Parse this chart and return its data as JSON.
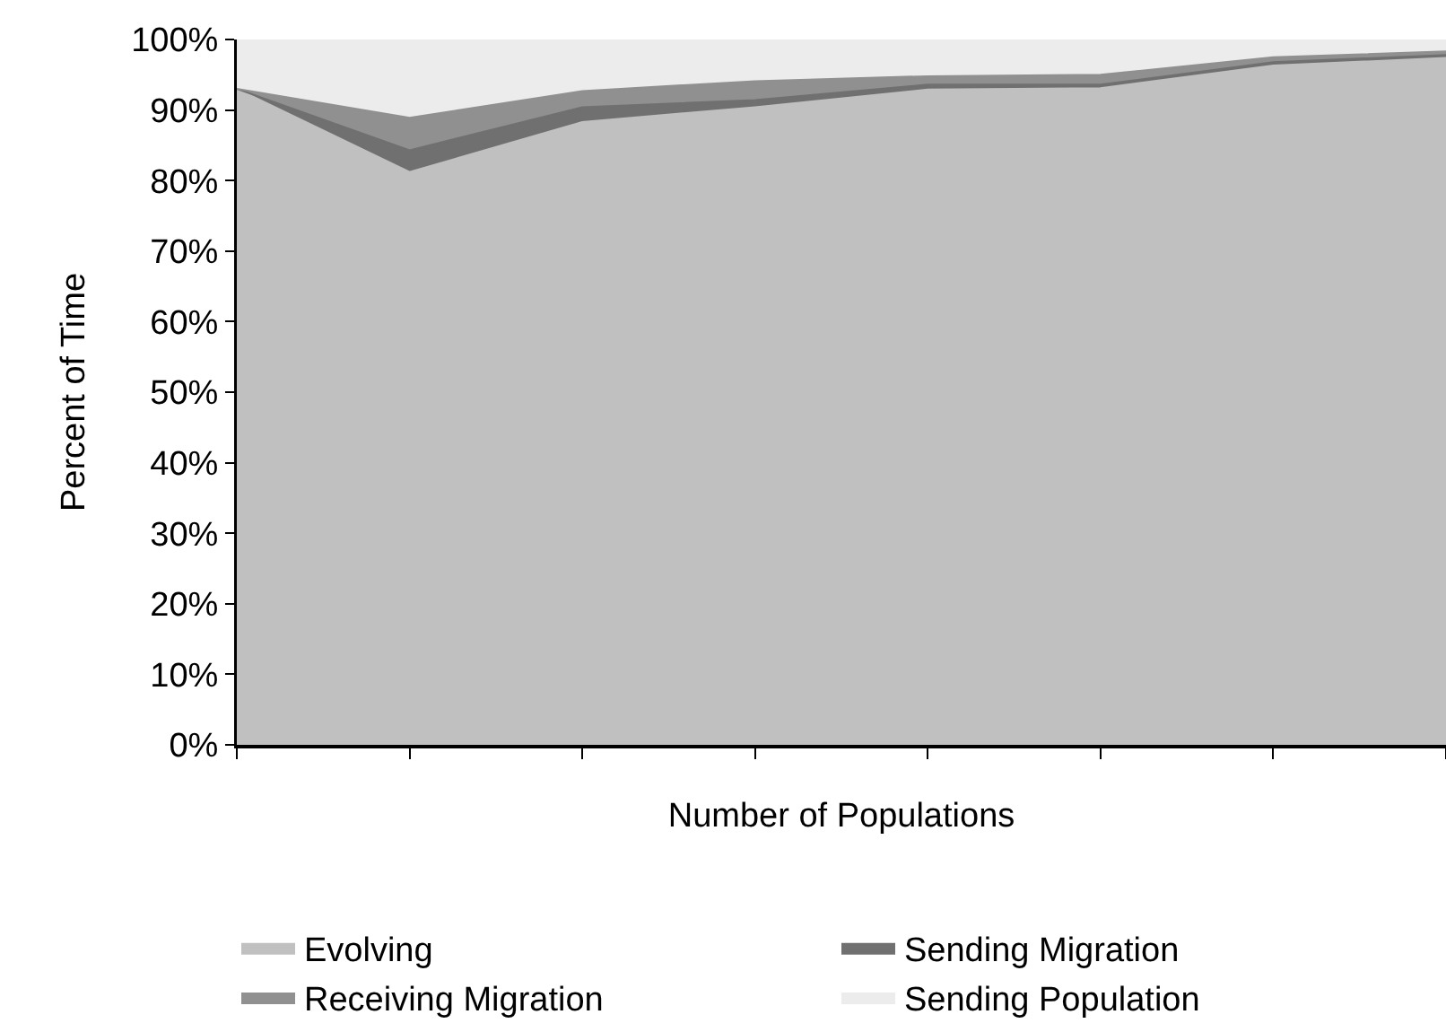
{
  "chart_data": {
    "type": "area",
    "stacked": true,
    "xlabel": "Number of Populations",
    "ylabel": "Percent of Time",
    "categories": [
      null,
      null,
      null,
      null,
      null,
      null,
      null,
      null
    ],
    "series": [
      {
        "name": "Evolving",
        "color": "#c0c0c0",
        "values": [
          93,
          81.2,
          88.3,
          90.4,
          92.9,
          93.1,
          96.3,
          97.4
        ]
      },
      {
        "name": "Sending Migration",
        "color": "#707070",
        "values": [
          0,
          3.1,
          2.1,
          1.0,
          0.7,
          0.5,
          0.5,
          0.4
        ]
      },
      {
        "name": "Receiving Migration",
        "color": "#909090",
        "values": [
          0,
          4.6,
          2.3,
          2.7,
          1.2,
          1.4,
          0.7,
          0.5
        ]
      },
      {
        "name": "Sending Population",
        "color": "#ececec",
        "values": [
          7,
          11.1,
          7.3,
          5.9,
          5.2,
          5.0,
          2.5,
          1.7
        ]
      }
    ],
    "ylim": [
      0,
      100
    ],
    "yticks": [
      {
        "value": 0,
        "label": "0%"
      },
      {
        "value": 10,
        "label": "10%"
      },
      {
        "value": 20,
        "label": "20%"
      },
      {
        "value": 30,
        "label": "30%"
      },
      {
        "value": 40,
        "label": "40%"
      },
      {
        "value": 50,
        "label": "50%"
      },
      {
        "value": 60,
        "label": "60%"
      },
      {
        "value": 70,
        "label": "70%"
      },
      {
        "value": 80,
        "label": "80%"
      },
      {
        "value": 90,
        "label": "90%"
      },
      {
        "value": 100,
        "label": "100%"
      }
    ],
    "tick_labels": "y",
    "legend": "bottom"
  }
}
